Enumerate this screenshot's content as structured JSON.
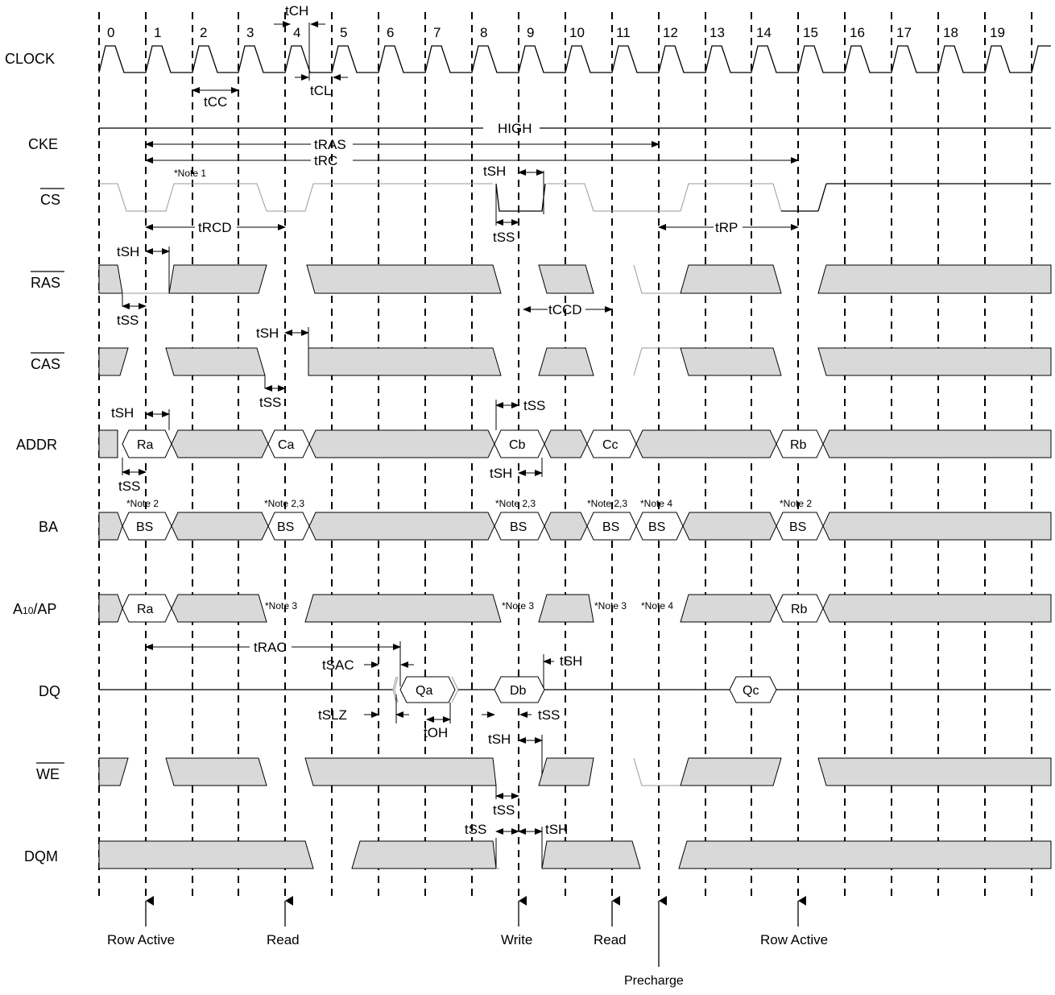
{
  "clock_numbers": [
    "0",
    "1",
    "2",
    "3",
    "4",
    "5",
    "6",
    "7",
    "8",
    "9",
    "10",
    "11",
    "12",
    "13",
    "14",
    "15",
    "16",
    "17",
    "18",
    "19"
  ],
  "signals": {
    "clock": "CLOCK",
    "cke": "CKE",
    "cs": "CS",
    "ras": "RAS",
    "cas": "CAS",
    "addr": "ADDR",
    "ba": "BA",
    "a10_sub": "10",
    "a10_pre": "A",
    "a10_post": "/AP",
    "dq": "DQ",
    "we": "WE",
    "dqm": "DQM"
  },
  "cke_level": "HIGH",
  "timing_labels": {
    "tch": "tCH",
    "tcl": "tCL",
    "tcc": "tCC",
    "tras": "tRAS",
    "trc": "tRC",
    "trcd": "tRCD",
    "trp": "tRP",
    "tccd": "tCCD",
    "trac": "tRAC",
    "tsac": "tSAC",
    "tslz": "tSLZ",
    "toh": "tOH",
    "tsh": "tSH",
    "tss": "tSS"
  },
  "bus_values": {
    "ra": "Ra",
    "ca": "Ca",
    "cb": "Cb",
    "cc": "Cc",
    "rb": "Rb",
    "bs": "BS",
    "qa": "Qa",
    "db": "Db",
    "qc": "Qc"
  },
  "notes": {
    "n1": "*Note 1",
    "n2": "*Note 2",
    "n23": "*Note 2,3",
    "n3": "*Note 3",
    "n4": "*Note 4"
  },
  "commands": {
    "row_active_1": "Row Active",
    "read_1": "Read",
    "write": "Write",
    "read_2": "Read",
    "precharge": "Precharge",
    "row_active_2": "Row Active"
  }
}
